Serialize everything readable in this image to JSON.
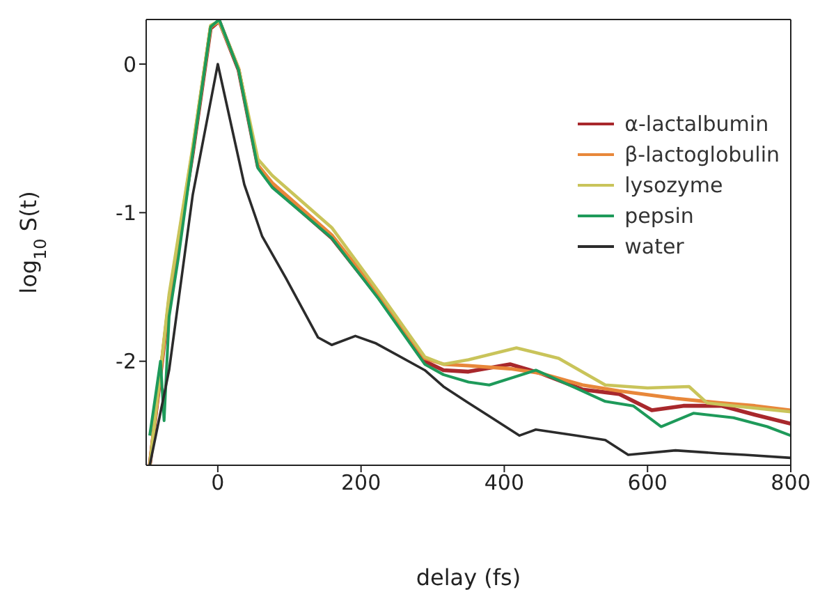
{
  "chart_data": {
    "type": "line",
    "xlabel": "delay (fs)",
    "ylabel": "log$_{10}$ S(t)",
    "xlim": [
      -100,
      800
    ],
    "ylim": [
      -2.7,
      0.3
    ],
    "xticks": [
      0,
      200,
      400,
      600,
      800
    ],
    "yticks": [
      0,
      -1,
      -2
    ],
    "legend": "top right",
    "marker": "none",
    "line_style": "solid",
    "series": [
      {
        "name": "α-lactalbumin",
        "color": "#a8282c",
        "x": [
          -95,
          -68,
          -35,
          -10,
          2,
          29,
          56,
          76,
          159,
          223,
          289,
          315,
          350,
          408,
          450,
          509,
          560,
          606,
          650,
          703,
          750,
          800
        ],
        "values": [
          -2.7,
          -1.6,
          -0.6,
          0.24,
          0.29,
          -0.04,
          -0.69,
          -0.82,
          -1.17,
          -1.56,
          -2.0,
          -2.06,
          -2.07,
          -2.02,
          -2.08,
          -2.19,
          -2.22,
          -2.33,
          -2.3,
          -2.3,
          -2.36,
          -2.42
        ]
      },
      {
        "name": "β-lactoglobulin",
        "color": "#e8873a",
        "x": [
          -95,
          -68,
          -35,
          -10,
          2,
          29,
          56,
          76,
          159,
          223,
          289,
          315,
          350,
          408,
          450,
          509,
          560,
          639,
          700,
          750,
          800
        ],
        "values": [
          -2.7,
          -1.58,
          -0.58,
          0.25,
          0.29,
          -0.03,
          -0.68,
          -0.8,
          -1.15,
          -1.54,
          -1.98,
          -2.02,
          -2.03,
          -2.05,
          -2.08,
          -2.16,
          -2.2,
          -2.25,
          -2.28,
          -2.3,
          -2.33
        ]
      },
      {
        "name": "lysozyme",
        "color": "#c9c45a",
        "x": [
          -95,
          -68,
          -35,
          -10,
          2,
          29,
          56,
          76,
          159,
          223,
          289,
          315,
          350,
          417,
          476,
          541,
          600,
          658,
          683,
          720,
          800
        ],
        "values": [
          -2.7,
          -1.55,
          -0.56,
          0.26,
          0.29,
          -0.03,
          -0.64,
          -0.75,
          -1.1,
          -1.52,
          -1.97,
          -2.02,
          -1.99,
          -1.91,
          -1.98,
          -2.16,
          -2.18,
          -2.17,
          -2.28,
          -2.3,
          -2.34
        ]
      },
      {
        "name": "pepsin",
        "color": "#1e9a5a",
        "x": [
          -95,
          -80,
          -75,
          -68,
          -55,
          -35,
          -10,
          2,
          29,
          56,
          76,
          159,
          223,
          289,
          315,
          350,
          379,
          444,
          500,
          541,
          580,
          619,
          664,
          720,
          767,
          800
        ],
        "values": [
          -2.5,
          -2.0,
          -2.4,
          -1.7,
          -1.3,
          -0.6,
          0.25,
          0.3,
          -0.04,
          -0.7,
          -0.83,
          -1.17,
          -1.57,
          -2.02,
          -2.09,
          -2.14,
          -2.16,
          -2.06,
          -2.18,
          -2.27,
          -2.3,
          -2.44,
          -2.35,
          -2.38,
          -2.44,
          -2.5
        ]
      },
      {
        "name": "water",
        "color": "#2b2b2b",
        "x": [
          -95,
          -68,
          -35,
          0,
          37,
          62,
          95,
          140,
          159,
          192,
          221,
          289,
          315,
          350,
          379,
          421,
          444,
          500,
          541,
          573,
          639,
          700,
          736,
          800
        ],
        "values": [
          -2.7,
          -2.06,
          -0.88,
          0,
          -0.81,
          -1.16,
          -1.44,
          -1.84,
          -1.89,
          -1.83,
          -1.88,
          -2.06,
          -2.17,
          -2.28,
          -2.37,
          -2.5,
          -2.46,
          -2.5,
          -2.53,
          -2.63,
          -2.6,
          -2.62,
          -2.63,
          -2.65
        ]
      }
    ]
  }
}
